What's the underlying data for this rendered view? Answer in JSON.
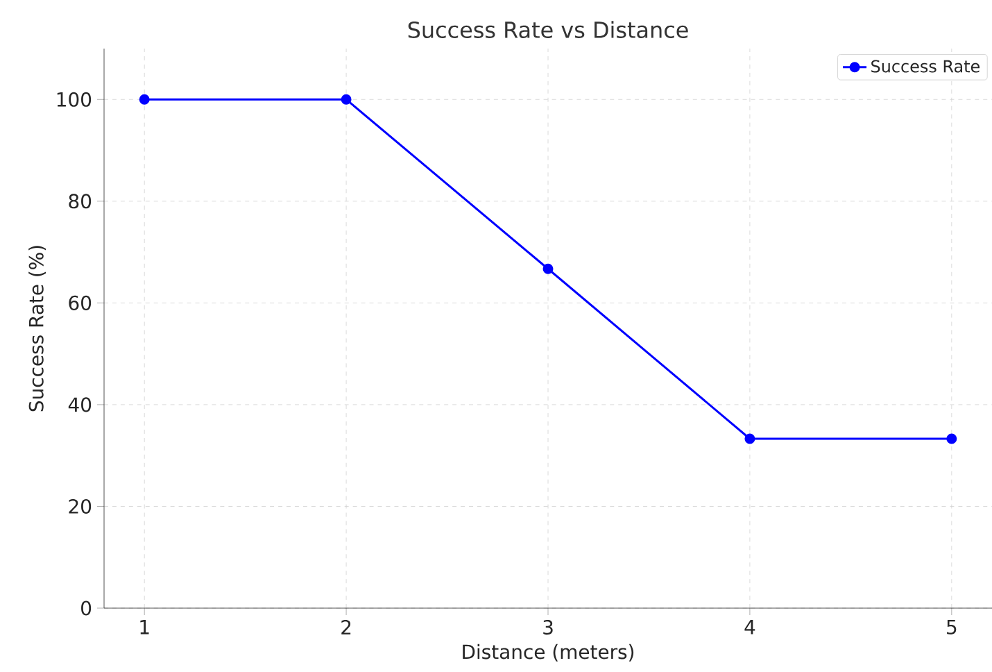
{
  "chart_data": {
    "type": "line",
    "title": "Success Rate vs Distance",
    "xlabel": "Distance (meters)",
    "ylabel": "Success Rate (%)",
    "x": [
      1,
      2,
      3,
      4,
      5
    ],
    "series": [
      {
        "name": "Success Rate",
        "color": "#0000ff",
        "values": [
          100,
          100,
          66.7,
          33.3,
          33.3
        ]
      }
    ],
    "xlim": [
      0.8,
      5.2
    ],
    "ylim": [
      0,
      110
    ],
    "xticks": [
      1,
      2,
      3,
      4,
      5
    ],
    "yticks": [
      0,
      20,
      40,
      60,
      80,
      100
    ],
    "grid": true,
    "legend": "top right",
    "marker": "circle",
    "line_style": "solid"
  }
}
